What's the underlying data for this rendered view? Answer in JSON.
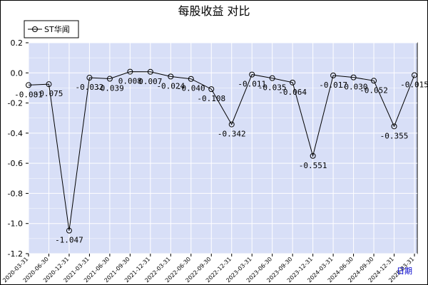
{
  "chart_data": {
    "type": "line",
    "title": "每股收益  对比",
    "series": [
      {
        "name": "ST华闻",
        "color": "#000000",
        "x": [
          "2020-03-31",
          "2020-06-30",
          "2020-12-31",
          "2021-03-31",
          "2021-06-30",
          "2021-09-30",
          "2021-12-31",
          "2022-03-31",
          "2022-06-30",
          "2022-09-30",
          "2022-12-31",
          "2023-03-31",
          "2023-06-30",
          "2023-09-30",
          "2023-12-31",
          "2024-03-31",
          "2024-06-30",
          "2024-09-30",
          "2024-12-31",
          "2025-03-31"
        ],
        "values": [
          -0.081,
          -0.075,
          -1.047,
          -0.032,
          -0.039,
          0.008,
          0.007,
          -0.024,
          -0.04,
          -0.108,
          -0.342,
          -0.011,
          -0.035,
          -0.064,
          -0.551,
          -0.017,
          -0.03,
          -0.052,
          -0.355,
          -0.015
        ],
        "labels": [
          "-0.081",
          "-0.075",
          "-1.047",
          "-0.032",
          "-0.039",
          "0.008",
          "0.007",
          "-0.024",
          "-0.040",
          "-0.108",
          "-0.342",
          "-0.011",
          "-0.035",
          "-0.064",
          "-0.551",
          "-0.017",
          "-0.030",
          "-0.052",
          "-0.355",
          "-0.015"
        ]
      }
    ],
    "x_tick_labels": [
      "2020-03-31",
      "2020-06-30",
      "2020-12-31",
      "2021-03-31",
      "2021-06-30",
      "2021-09-30",
      "2021-12-31",
      "2022-03-31",
      "2022-06-30",
      "2022-09-30",
      "2022-12-31",
      "2023-03-31",
      "2023-06-30",
      "2023-09-30",
      "2023-12-31",
      "2024-03-31",
      "2024-06-30",
      "2024-09-30",
      "2024-12-31",
      "2025-03-31"
    ],
    "y_tick_labels": [
      "0.2",
      "0.0",
      "-0.2",
      "-0.4",
      "-0.6",
      "-0.8",
      "-1.0",
      "-1.2"
    ],
    "ylim": [
      -1.2,
      0.2
    ],
    "grid": true,
    "legend_position": "top-left",
    "period_label": "日期",
    "colors": {
      "plot_bg": "#d8dff7",
      "grid": "#ffffff",
      "line": "#000000"
    }
  }
}
